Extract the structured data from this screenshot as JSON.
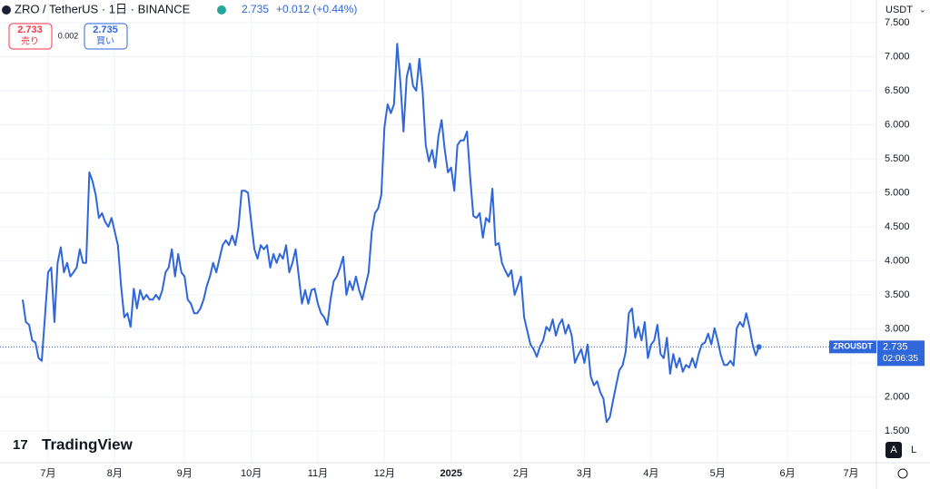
{
  "chart_data": {
    "type": "line",
    "title": "ZRO / TetherUS · 1日 · BINANCE",
    "last_price": 2.735,
    "change": "+0.012 (+0.44%)",
    "currency": "USDT",
    "sell_price": 2.733,
    "sell_label": "売り",
    "spread": 0.002,
    "buy_price": 2.735,
    "buy_label": "買い",
    "watermark": "TradingView",
    "symbol": "ZROUSDT",
    "countdown": "02:06:35",
    "scale_buttons": [
      "A",
      "L"
    ],
    "color": "#2f66d9",
    "grid": true,
    "ylim": [
      1.033,
      7.833
    ],
    "yticks": [
      {
        "value": 1.5,
        "label": "1.500"
      },
      {
        "value": 2,
        "label": "2.000"
      },
      {
        "value": 2.5,
        "label": "2.500"
      },
      {
        "value": 3,
        "label": "3.000"
      },
      {
        "value": 3.5,
        "label": "3.500"
      },
      {
        "value": 4,
        "label": "4.000"
      },
      {
        "value": 4.5,
        "label": "4.500"
      },
      {
        "value": 5,
        "label": "5.000"
      },
      {
        "value": 5.5,
        "label": "5.500"
      },
      {
        "value": 6,
        "label": "6.000"
      },
      {
        "value": 6.5,
        "label": "6.500"
      },
      {
        "value": 7,
        "label": "7.000"
      },
      {
        "value": 7.5,
        "label": "7.500"
      }
    ],
    "categories": [
      null,
      null,
      null,
      null,
      null,
      null,
      null,
      null,
      "7月",
      null,
      null,
      null,
      null,
      null,
      null,
      null,
      null,
      null,
      null,
      null,
      null,
      null,
      null,
      null,
      null,
      null,
      null,
      null,
      null,
      "8月",
      null,
      null,
      null,
      null,
      null,
      null,
      null,
      null,
      null,
      null,
      null,
      null,
      null,
      null,
      null,
      null,
      null,
      null,
      null,
      null,
      null,
      "9月",
      null,
      null,
      null,
      null,
      null,
      null,
      null,
      null,
      null,
      null,
      null,
      null,
      null,
      null,
      null,
      null,
      null,
      null,
      null,
      null,
      "10月",
      null,
      null,
      null,
      null,
      null,
      null,
      null,
      null,
      null,
      null,
      null,
      null,
      null,
      null,
      null,
      null,
      null,
      null,
      null,
      null,
      "11月",
      null,
      null,
      null,
      null,
      null,
      null,
      null,
      null,
      null,
      null,
      null,
      null,
      null,
      null,
      null,
      null,
      null,
      null,
      null,
      null,
      "12月",
      null,
      null,
      null,
      null,
      null,
      null,
      null,
      null,
      null,
      null,
      null,
      null,
      null,
      null,
      null,
      null,
      null,
      null,
      null,
      null,
      "2025",
      null,
      null,
      null,
      null,
      null,
      null,
      null,
      null,
      null,
      null,
      null,
      null,
      null,
      null,
      null,
      null,
      null,
      null,
      null,
      null,
      null,
      "2月",
      null,
      null,
      null,
      null,
      null,
      null,
      null,
      null,
      null,
      null,
      null,
      null,
      null,
      null,
      null,
      null,
      null,
      null,
      null,
      "3月",
      null,
      null,
      null,
      null,
      null,
      null,
      null,
      null,
      null,
      null,
      null,
      null,
      null,
      null,
      null,
      null,
      null,
      null,
      null,
      null,
      "4月",
      null,
      null,
      null,
      null,
      null,
      null,
      null,
      null,
      null,
      null,
      null,
      null,
      null,
      null,
      null,
      null,
      null,
      null,
      null,
      null,
      "5月",
      null,
      null,
      null,
      null,
      null,
      null,
      null,
      null,
      null,
      null,
      null,
      null,
      null,
      null,
      null,
      null,
      null,
      null,
      null,
      null,
      null,
      "6月",
      null,
      null,
      null,
      null,
      null,
      null,
      null,
      null,
      null,
      null,
      null,
      null,
      null,
      null,
      null,
      null,
      null,
      null,
      null,
      "7月"
    ],
    "values": [
      3.43,
      3.1,
      3.06,
      2.83,
      2.8,
      2.57,
      2.53,
      3.17,
      3.83,
      3.9,
      3.1,
      3.97,
      4.2,
      3.83,
      3.97,
      3.77,
      3.83,
      3.9,
      4.17,
      3.97,
      3.97,
      5.3,
      5.17,
      4.97,
      4.63,
      4.7,
      4.57,
      4.5,
      4.63,
      4.43,
      4.23,
      3.63,
      3.17,
      3.23,
      3.03,
      3.59,
      3.3,
      3.57,
      3.43,
      3.5,
      3.43,
      3.43,
      3.5,
      3.43,
      3.57,
      3.83,
      3.9,
      4.17,
      3.77,
      4.1,
      3.83,
      3.77,
      3.43,
      3.37,
      3.23,
      3.23,
      3.3,
      3.43,
      3.63,
      3.77,
      3.97,
      3.83,
      4.03,
      4.23,
      4.3,
      4.23,
      4.37,
      4.23,
      4.5,
      5.03,
      5.03,
      5.0,
      4.57,
      4.17,
      4.03,
      4.23,
      4.17,
      4.23,
      3.9,
      4.1,
      3.97,
      4.1,
      4.03,
      4.23,
      3.83,
      3.97,
      4.17,
      3.77,
      3.37,
      3.57,
      3.37,
      3.57,
      3.59,
      3.37,
      3.23,
      3.17,
      3.06,
      3.43,
      3.7,
      3.77,
      3.9,
      4.06,
      3.5,
      3.7,
      3.57,
      3.77,
      3.57,
      3.43,
      3.63,
      3.83,
      4.43,
      4.7,
      4.77,
      4.97,
      5.97,
      6.3,
      6.17,
      6.3,
      7.19,
      6.63,
      5.9,
      6.7,
      6.9,
      6.57,
      6.5,
      6.97,
      6.5,
      5.7,
      5.46,
      5.63,
      5.37,
      5.83,
      6.07,
      5.63,
      5.3,
      5.37,
      5.03,
      5.7,
      5.77,
      5.77,
      5.9,
      5.23,
      4.66,
      4.63,
      4.7,
      4.34,
      4.63,
      4.57,
      5.06,
      4.23,
      4.26,
      3.97,
      3.86,
      3.77,
      3.86,
      3.5,
      3.63,
      3.77,
      3.17,
      2.97,
      2.77,
      2.7,
      2.59,
      2.74,
      2.83,
      3.03,
      2.97,
      3.14,
      2.9,
      3.06,
      3.14,
      2.93,
      3.06,
      2.9,
      2.5,
      2.61,
      2.7,
      2.5,
      2.77,
      2.3,
      2.17,
      2.23,
      2.07,
      1.97,
      1.63,
      1.7,
      1.94,
      2.17,
      2.39,
      2.46,
      2.66,
      3.23,
      3.3,
      2.87,
      3.03,
      2.83,
      3.1,
      2.57,
      2.77,
      2.83,
      3.06,
      2.63,
      2.57,
      2.87,
      2.34,
      2.63,
      2.43,
      2.57,
      2.37,
      2.47,
      2.43,
      2.57,
      2.43,
      2.63,
      2.77,
      2.8,
      2.93,
      2.77,
      3.01,
      2.83,
      2.61,
      2.47,
      2.47,
      2.53,
      2.46,
      3.01,
      3.1,
      3.03,
      3.23,
      3.03,
      2.77,
      2.61,
      2.735,
      null,
      null,
      null,
      null,
      null,
      null,
      null,
      null,
      null,
      null,
      null,
      null,
      null,
      null,
      null,
      null,
      null,
      null,
      null,
      null,
      null,
      null,
      null,
      null,
      null,
      null,
      null,
      null,
      null
    ]
  }
}
